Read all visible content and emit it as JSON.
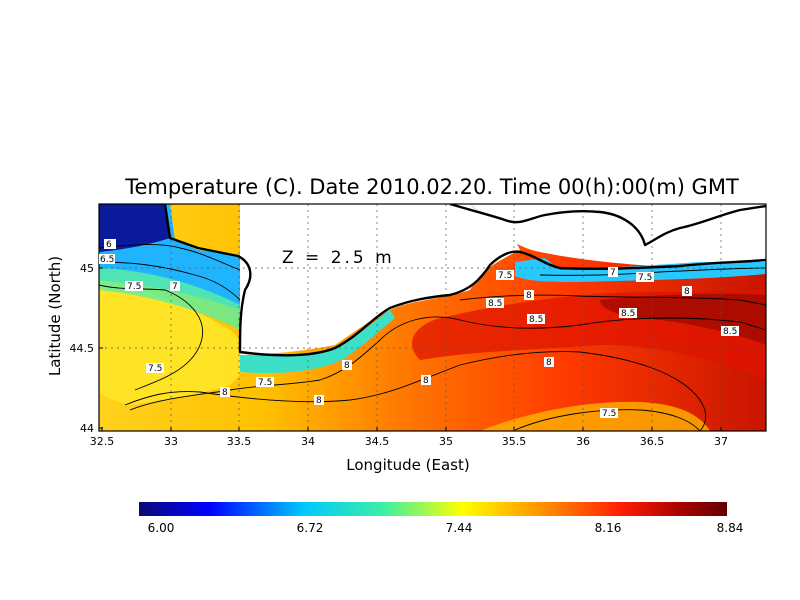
{
  "title": "Temperature (C). Date 2010.02.20. Time 00(h):00(m) GMT",
  "annotation": "Z = 2.5 m",
  "xlabel": "Longitude (East)",
  "ylabel": "Latitude (North)",
  "x_ticks": [
    "32.5",
    "33",
    "33.5",
    "34",
    "34.5",
    "35",
    "35.5",
    "36",
    "36.5",
    "37"
  ],
  "y_ticks": [
    "45",
    "44.5",
    "44"
  ],
  "colorbar": {
    "ticks": [
      "6.00",
      "6.72",
      "7.44",
      "8.16",
      "8.84"
    ],
    "min": 6.0,
    "max": 8.84,
    "colors": [
      "#0a0a78",
      "#0000ff",
      "#00c8ff",
      "#40f0a0",
      "#ffff00",
      "#ff9600",
      "#ff1e00",
      "#a00000",
      "#640000"
    ]
  },
  "contour_labels": [
    "6",
    "6.5",
    "7",
    "7.5",
    "7.5",
    "7.5",
    "7.5",
    "7",
    "7.5",
    "8",
    "8",
    "8",
    "8",
    "8",
    "8.5",
    "8.5",
    "8.5",
    "8.5",
    "8",
    "7.5",
    "8"
  ],
  "chart_data": {
    "type": "heatmap",
    "title": "Temperature (C). Date 2010.02.20. Time 00(h):00(m) GMT",
    "xlabel": "Longitude (East)",
    "ylabel": "Latitude (North)",
    "xlim": [
      32.45,
      37.33
    ],
    "ylim": [
      43.99,
      45.37
    ],
    "value_range": [
      6.0,
      8.84
    ],
    "unit": "C",
    "depth": "Z = 2.5 m",
    "grid": true,
    "contour_levels": [
      6,
      6.5,
      7,
      7.5,
      8,
      8.5
    ]
  }
}
